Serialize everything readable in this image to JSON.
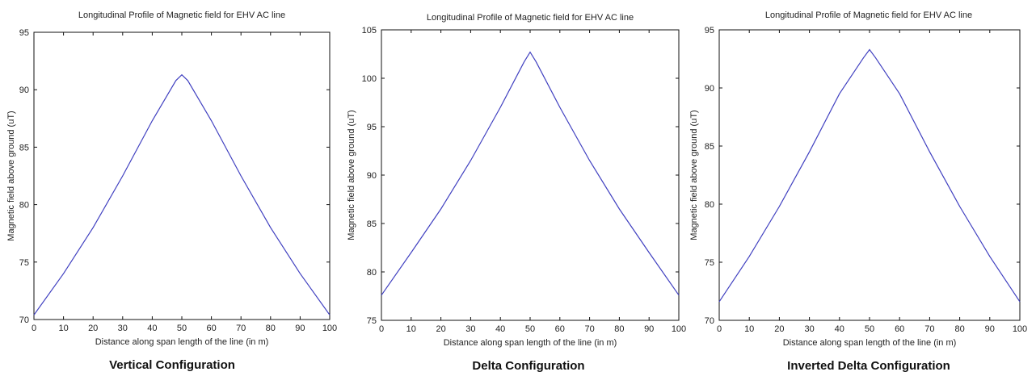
{
  "chart_data": [
    {
      "type": "line",
      "title": "Longitudinal Profile of Magnetic field for EHV AC line",
      "xlabel": "Distance along span length of the line (in m)",
      "ylabel": "Magnetic field above ground (uT)",
      "caption": "Vertical Configuration",
      "xlim": [
        0,
        100
      ],
      "ylim": [
        70,
        95
      ],
      "xticks": [
        "0",
        "10",
        "20",
        "30",
        "40",
        "50",
        "60",
        "70",
        "80",
        "90",
        "100"
      ],
      "yticks": [
        "70",
        "75",
        "80",
        "85",
        "90",
        "95"
      ],
      "grid": false,
      "series": [
        {
          "color": "#4040c0",
          "x": [
            0,
            10,
            20,
            30,
            40,
            48,
            50,
            52,
            60,
            70,
            80,
            90,
            100
          ],
          "y": [
            70.4,
            74.0,
            78.0,
            82.5,
            87.3,
            90.8,
            91.3,
            90.8,
            87.3,
            82.5,
            78.0,
            74.0,
            70.4
          ]
        }
      ]
    },
    {
      "type": "line",
      "title": "Longitudinal Profile of Magnetic field for EHV AC line",
      "xlabel": "Distance along span length of the line (in m)",
      "ylabel": "Magnetic field above ground (uT)",
      "caption": "Delta Configuration",
      "xlim": [
        0,
        100
      ],
      "ylim": [
        75,
        105
      ],
      "xticks": [
        "0",
        "10",
        "20",
        "30",
        "40",
        "50",
        "60",
        "70",
        "80",
        "90",
        "100"
      ],
      "yticks": [
        "75",
        "80",
        "85",
        "90",
        "95",
        "100",
        "105"
      ],
      "grid": false,
      "series": [
        {
          "color": "#4040c0",
          "x": [
            0,
            10,
            20,
            30,
            40,
            48,
            50,
            52,
            60,
            70,
            80,
            90,
            100
          ],
          "y": [
            77.6,
            82.0,
            86.5,
            91.5,
            97.0,
            101.7,
            102.7,
            101.7,
            97.0,
            91.5,
            86.5,
            82.0,
            77.6
          ]
        }
      ]
    },
    {
      "type": "line",
      "title": "Longitudinal Profile of Magnetic field for EHV AC line",
      "xlabel": "Distance along span length of the line (in m)",
      "ylabel": "Magnetic field above ground (uT)",
      "caption": "Inverted Delta Configuration",
      "xlim": [
        0,
        100
      ],
      "ylim": [
        70,
        95
      ],
      "xticks": [
        "0",
        "10",
        "20",
        "30",
        "40",
        "50",
        "60",
        "70",
        "80",
        "90",
        "100"
      ],
      "yticks": [
        "70",
        "75",
        "80",
        "85",
        "90",
        "95"
      ],
      "grid": false,
      "series": [
        {
          "color": "#4040c0",
          "x": [
            0,
            10,
            20,
            30,
            40,
            48,
            50,
            52,
            60,
            70,
            80,
            90,
            100
          ],
          "y": [
            71.6,
            75.5,
            79.8,
            84.5,
            89.5,
            92.6,
            93.3,
            92.6,
            89.5,
            84.5,
            79.8,
            75.5,
            71.6
          ]
        }
      ]
    }
  ]
}
